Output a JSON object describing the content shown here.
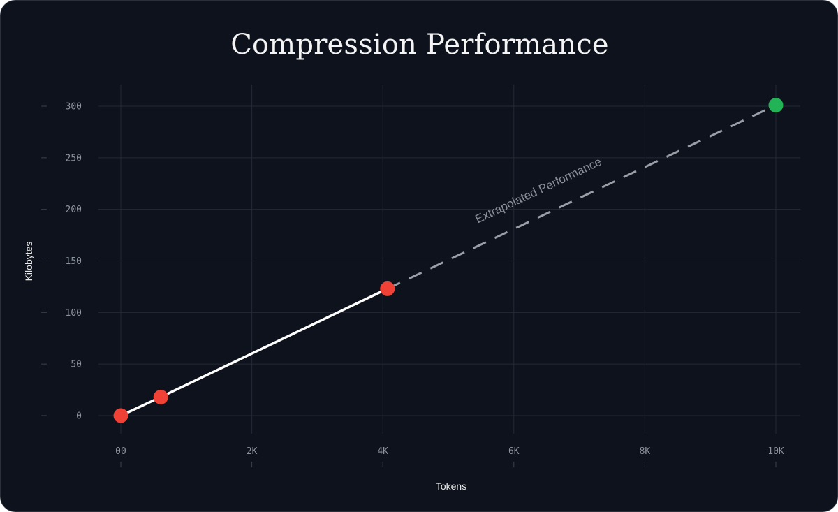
{
  "chart_data": {
    "type": "line",
    "title": "Compression Performance",
    "xlabel": "Tokens",
    "ylabel": "Kilobytes",
    "xlim": [
      0,
      10000
    ],
    "ylim": [
      0,
      300
    ],
    "x_ticks": [
      0,
      2000,
      4000,
      6000,
      8000,
      10000
    ],
    "x_tick_labels": [
      "00",
      "2K",
      "4K",
      "6K",
      "8K",
      "10K"
    ],
    "y_ticks": [
      0,
      50,
      100,
      150,
      200,
      250,
      300
    ],
    "y_tick_labels": [
      "0",
      "50",
      "100",
      "150",
      "200",
      "250",
      "300"
    ],
    "grid": true,
    "series": [
      {
        "style": "solid",
        "color": "#ffffff",
        "marker_color": "#ef4135",
        "points": [
          {
            "x": 0,
            "y": 0
          },
          {
            "x": 610,
            "y": 18
          },
          {
            "x": 4070,
            "y": 123
          }
        ]
      },
      {
        "style": "dashed",
        "color": "#9a9ea6",
        "end_marker_color": "#21b356",
        "points": [
          {
            "x": 4070,
            "y": 123
          },
          {
            "x": 10000,
            "y": 301
          }
        ]
      }
    ],
    "annotations": [
      {
        "text": "Extrapolated Performance",
        "x": 6400,
        "y": 215
      }
    ]
  }
}
